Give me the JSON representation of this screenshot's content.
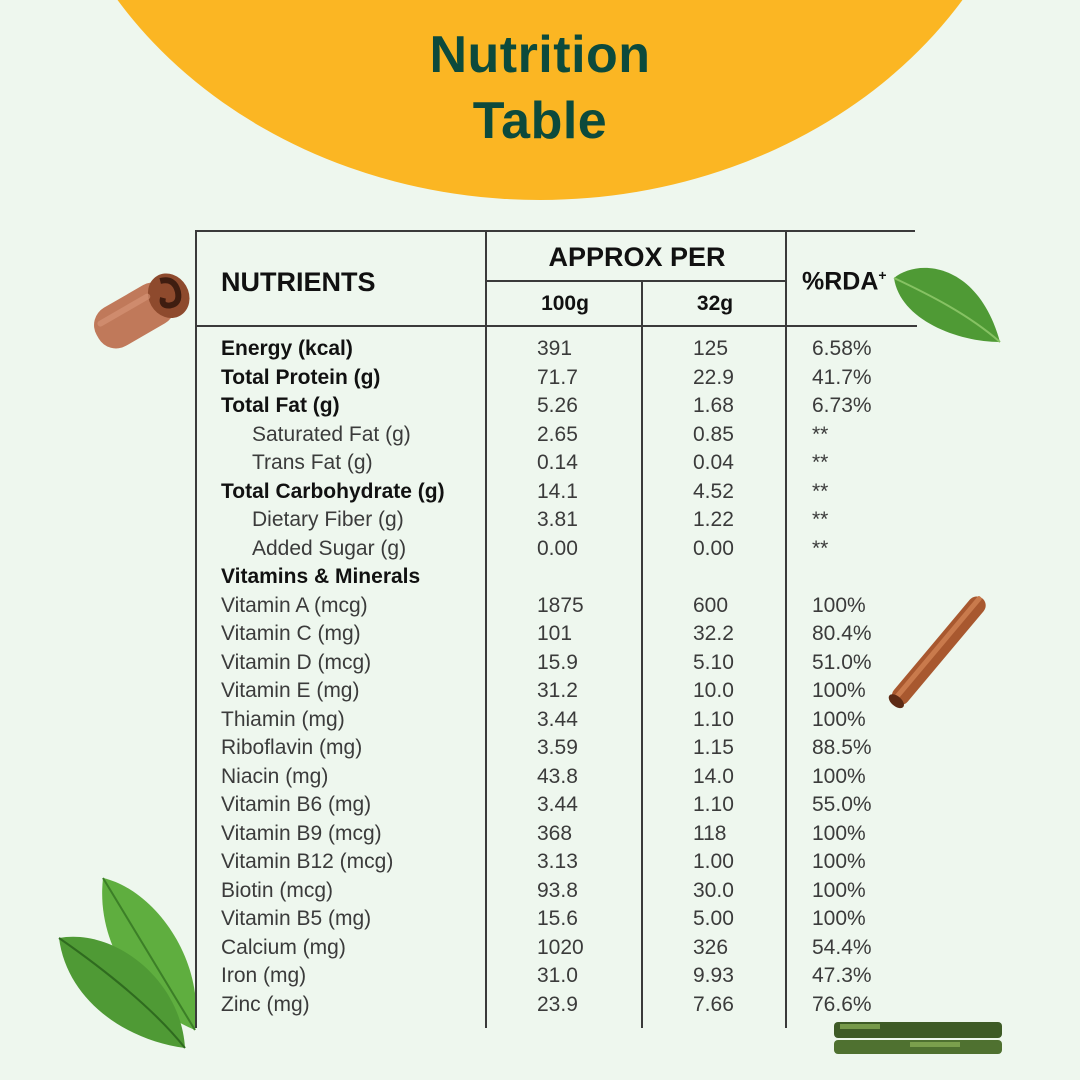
{
  "title_line1": "Nutrition",
  "title_line2": "Table",
  "headers": {
    "nutrients": "NUTRIENTS",
    "approx_per": "APPROX PER",
    "col_100g": "100g",
    "col_32g": "32g",
    "rda": "%RDA",
    "rda_mark": "+"
  },
  "rows": [
    {
      "name": "Energy (kcal)",
      "v100": "391",
      "v32": "125",
      "rda": "6.58%",
      "style": "bold"
    },
    {
      "name": "Total Protein (g)",
      "v100": "71.7",
      "v32": "22.9",
      "rda": "41.7%",
      "style": "bold"
    },
    {
      "name": "Total Fat (g)",
      "v100": "5.26",
      "v32": "1.68",
      "rda": "6.73%",
      "style": "bold"
    },
    {
      "name": "Saturated Fat (g)",
      "v100": "2.65",
      "v32": "0.85",
      "rda": "**",
      "style": "indent"
    },
    {
      "name": "Trans Fat (g)",
      "v100": "0.14",
      "v32": "0.04",
      "rda": "**",
      "style": "indent"
    },
    {
      "name": "Total Carbohydrate (g)",
      "v100": "14.1",
      "v32": "4.52",
      "rda": "**",
      "style": "bold"
    },
    {
      "name": "Dietary Fiber (g)",
      "v100": "3.81",
      "v32": "1.22",
      "rda": "**",
      "style": "indent"
    },
    {
      "name": "Added Sugar (g)",
      "v100": "0.00",
      "v32": "0.00",
      "rda": "**",
      "style": "indent"
    },
    {
      "name": "Vitamins & Minerals",
      "v100": "",
      "v32": "",
      "rda": "",
      "style": "bold"
    },
    {
      "name": "Vitamin A (mcg)",
      "v100": "1875",
      "v32": "600",
      "rda": "100%",
      "style": "normal"
    },
    {
      "name": "Vitamin C (mg)",
      "v100": "101",
      "v32": "32.2",
      "rda": "80.4%",
      "style": "normal"
    },
    {
      "name": "Vitamin D (mcg)",
      "v100": "15.9",
      "v32": "5.10",
      "rda": "51.0%",
      "style": "normal"
    },
    {
      "name": "Vitamin E (mg)",
      "v100": "31.2",
      "v32": "10.0",
      "rda": "100%",
      "style": "normal"
    },
    {
      "name": "Thiamin (mg)",
      "v100": "3.44",
      "v32": "1.10",
      "rda": "100%",
      "style": "normal"
    },
    {
      "name": "Riboflavin (mg)",
      "v100": "3.59",
      "v32": "1.15",
      "rda": "88.5%",
      "style": "normal"
    },
    {
      "name": "Niacin (mg)",
      "v100": "43.8",
      "v32": "14.0",
      "rda": "100%",
      "style": "normal"
    },
    {
      "name": "Vitamin B6 (mg)",
      "v100": "3.44",
      "v32": "1.10",
      "rda": "55.0%",
      "style": "normal"
    },
    {
      "name": "Vitamin B9 (mcg)",
      "v100": "368",
      "v32": "118",
      "rda": "100%",
      "style": "normal"
    },
    {
      "name": "Vitamin B12 (mcg)",
      "v100": "3.13",
      "v32": "1.00",
      "rda": "100%",
      "style": "normal"
    },
    {
      "name": "Biotin (mcg)",
      "v100": "93.8",
      "v32": "30.0",
      "rda": "100%",
      "style": "normal"
    },
    {
      "name": "Vitamin B5 (mg)",
      "v100": "15.6",
      "v32": "5.00",
      "rda": "100%",
      "style": "normal"
    },
    {
      "name": "Calcium (mg)",
      "v100": "1020",
      "v32": "326",
      "rda": "54.4%",
      "style": "normal"
    },
    {
      "name": "Iron (mg)",
      "v100": "31.0",
      "v32": "9.93",
      "rda": "47.3%",
      "style": "normal"
    },
    {
      "name": "Zinc (mg)",
      "v100": "23.9",
      "v32": "7.66",
      "rda": "76.6%",
      "style": "normal"
    }
  ],
  "colors": {
    "background": "#eef7ee",
    "accent": "#fbb623",
    "title": "#0c4a3c"
  },
  "decorations": [
    "cinnamon-curl-icon",
    "leaf-icon",
    "cinnamon-stick-icon",
    "mint-leaves-icon",
    "herb-twig-icon"
  ]
}
